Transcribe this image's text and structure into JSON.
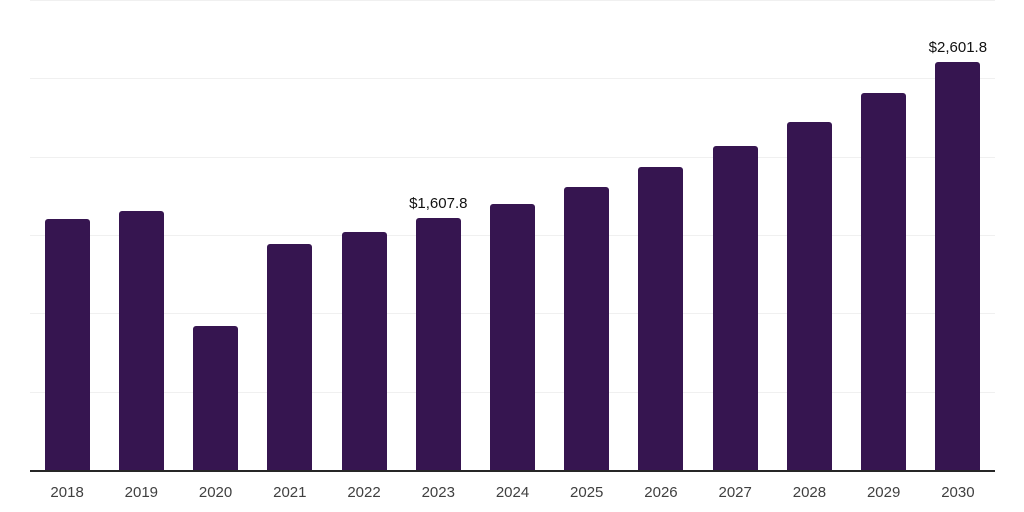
{
  "chart_data": {
    "type": "bar",
    "title": "",
    "xlabel": "",
    "ylabel": "",
    "categories": [
      "2018",
      "2019",
      "2020",
      "2021",
      "2022",
      "2023",
      "2024",
      "2025",
      "2026",
      "2027",
      "2028",
      "2029",
      "2030"
    ],
    "values": [
      1600,
      1653,
      919,
      1443,
      1517,
      1607.8,
      1696,
      1808,
      1932,
      2070,
      2223,
      2404,
      2601.8
    ],
    "point_labels": {
      "2023": "$1,607.8",
      "2030": "$2,601.8"
    },
    "ylim": [
      0,
      3000
    ],
    "grid_interval": 500,
    "grid": "horizontal",
    "legend": "none",
    "y_axis_tick_labels": "none",
    "colors": {
      "bar": "#361550",
      "grid": "#f0f0f0",
      "axis": "#262626",
      "tick": "#404040",
      "value_label": "#111111",
      "background": "#ffffff"
    }
  }
}
